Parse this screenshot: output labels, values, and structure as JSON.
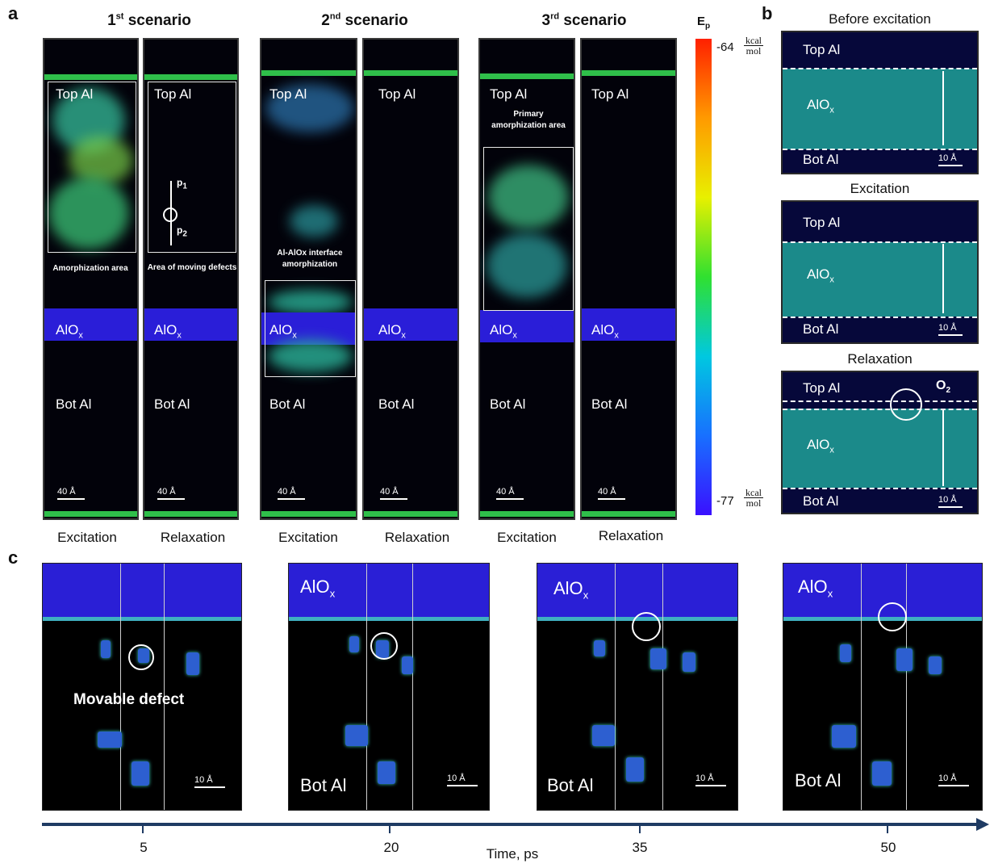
{
  "panel_labels": {
    "a": "a",
    "b": "b",
    "c": "c"
  },
  "panel_a": {
    "scenarios": [
      {
        "title_num": "1",
        "title_sup": "st",
        "title_rest": " scenario"
      },
      {
        "title_num": "2",
        "title_sup": "nd",
        "title_rest": " scenario"
      },
      {
        "title_num": "3",
        "title_sup": "rd",
        "title_rest": " scenario"
      }
    ],
    "layer_top": "Top Al",
    "layer_alox": "AlO",
    "layer_alox_sub": "x",
    "layer_bot": "Bot Al",
    "scale": "40 Å",
    "captions": [
      "Excitation",
      "Relaxation",
      "Excitation",
      "Relaxation",
      "Excitation",
      "Relaxation"
    ],
    "annotations": {
      "amorphization_area": "Amorphization area",
      "moving_defects": "Area of moving defects",
      "p1": "p",
      "p1_sub": "1",
      "p2": "p",
      "p2_sub": "2",
      "interface_amorph": "Al-AlOx interface amorphization",
      "primary_amorph": "Primary amorphization area"
    }
  },
  "colorbar": {
    "label": "E",
    "label_sub": "p",
    "max": "-64",
    "min": "-77",
    "unit_num": "kcal",
    "unit_den": "mol",
    "colors": [
      "#ff2000",
      "#ff9a00",
      "#e8f000",
      "#30e030",
      "#00c8e0",
      "#1870ff",
      "#3a10ff"
    ]
  },
  "panel_b": {
    "subpanels": [
      {
        "title": "Before excitation"
      },
      {
        "title": "Excitation"
      },
      {
        "title": "Relaxation"
      }
    ],
    "layer_top": "Top Al",
    "layer_alox": "AlO",
    "layer_alox_sub": "x",
    "layer_bot": "Bot Al",
    "scale": "10 Å",
    "o2_label": "O",
    "o2_sub": "2"
  },
  "panel_c": {
    "alox": "AlO",
    "alox_sub": "x",
    "bot": "Bot Al",
    "scale": "10 Å",
    "movable_defect": "Movable defect",
    "axis_label": "Time, ps",
    "ticks": [
      "5",
      "20",
      "35",
      "50"
    ]
  }
}
